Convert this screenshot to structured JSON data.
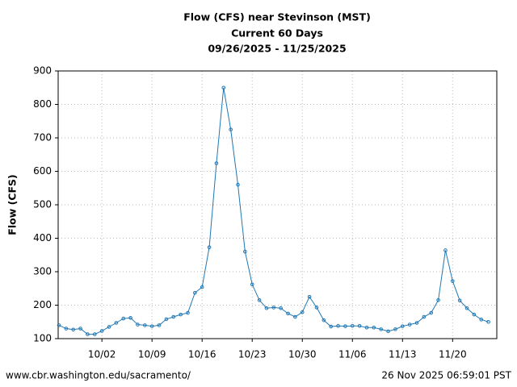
{
  "chart_data": {
    "type": "line",
    "title": "Flow (CFS) near Stevinson (MST)",
    "subtitle": "Current 60 Days",
    "date_range": "09/26/2025 - 11/25/2025",
    "y_label": "Flow (CFS)",
    "categories": [
      null,
      null,
      null,
      null,
      null,
      null,
      "10/02",
      null,
      null,
      null,
      null,
      null,
      null,
      "10/09",
      null,
      null,
      null,
      null,
      null,
      null,
      "10/16",
      null,
      null,
      null,
      null,
      null,
      null,
      "10/23",
      null,
      null,
      null,
      null,
      null,
      null,
      "10/30",
      null,
      null,
      null,
      null,
      null,
      null,
      "11/06",
      null,
      null,
      null,
      null,
      null,
      null,
      "11/13",
      null,
      null,
      null,
      null,
      null,
      null,
      "11/20",
      null,
      null,
      null,
      null,
      null
    ],
    "series": [
      {
        "name": "Flow",
        "color": "#1f77b4",
        "values": [
          140,
          130,
          127,
          130,
          113,
          113,
          123,
          135,
          147,
          160,
          162,
          142,
          140,
          137,
          140,
          158,
          165,
          172,
          177,
          237,
          254,
          373,
          624,
          850,
          725,
          560,
          360,
          262,
          215,
          191,
          193,
          191,
          175,
          165,
          179,
          225,
          193,
          155,
          136,
          138,
          137,
          138,
          138,
          133,
          133,
          128,
          122,
          128,
          137,
          142,
          147,
          165,
          177,
          215,
          364,
          272,
          214,
          191,
          172,
          157,
          150
        ]
      }
    ],
    "ylim": [
      100,
      900
    ],
    "yticks": [
      100,
      200,
      300,
      400,
      500,
      600,
      700,
      800,
      900
    ],
    "grid": true
  },
  "footer": {
    "source": "www.cbr.washington.edu/sacramento/",
    "timestamp": "26 Nov 2025 06:59:01 PST"
  }
}
